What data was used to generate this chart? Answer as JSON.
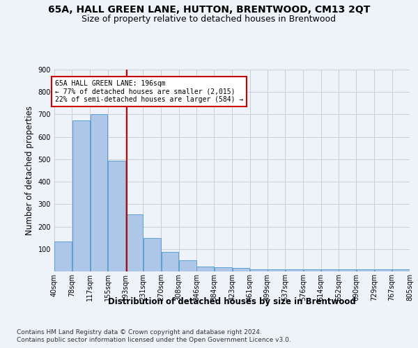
{
  "title": "65A, HALL GREEN LANE, HUTTON, BRENTWOOD, CM13 2QT",
  "subtitle": "Size of property relative to detached houses in Brentwood",
  "xlabel": "Distribution of detached houses by size in Brentwood",
  "ylabel": "Number of detached properties",
  "bar_values": [
    135,
    675,
    700,
    495,
    255,
    150,
    88,
    50,
    22,
    18,
    15,
    10,
    8,
    8,
    8,
    8,
    8,
    8,
    8,
    8
  ],
  "bin_edges": [
    40,
    78,
    117,
    155,
    193,
    231,
    270,
    308,
    346,
    384,
    423,
    461,
    499,
    537,
    576,
    614,
    652,
    690,
    729,
    767,
    805
  ],
  "bar_color": "#aec6e8",
  "bar_edge_color": "#5a9fd4",
  "vline_x": 196,
  "vline_color": "#cc0000",
  "annotation_text": "65A HALL GREEN LANE: 196sqm\n← 77% of detached houses are smaller (2,015)\n22% of semi-detached houses are larger (584) →",
  "annotation_box_color": "#ffffff",
  "annotation_box_edge": "#cc0000",
  "ylim": [
    0,
    900
  ],
  "yticks": [
    0,
    100,
    200,
    300,
    400,
    500,
    600,
    700,
    800,
    900
  ],
  "footer_line1": "Contains HM Land Registry data © Crown copyright and database right 2024.",
  "footer_line2": "Contains public sector information licensed under the Open Government Licence v3.0.",
  "background_color": "#eef2f9",
  "plot_bg_color": "#eef2f9",
  "grid_color": "#c8cdd8",
  "title_fontsize": 10,
  "subtitle_fontsize": 9,
  "axis_label_fontsize": 8.5,
  "tick_fontsize": 7,
  "footer_fontsize": 6.5
}
